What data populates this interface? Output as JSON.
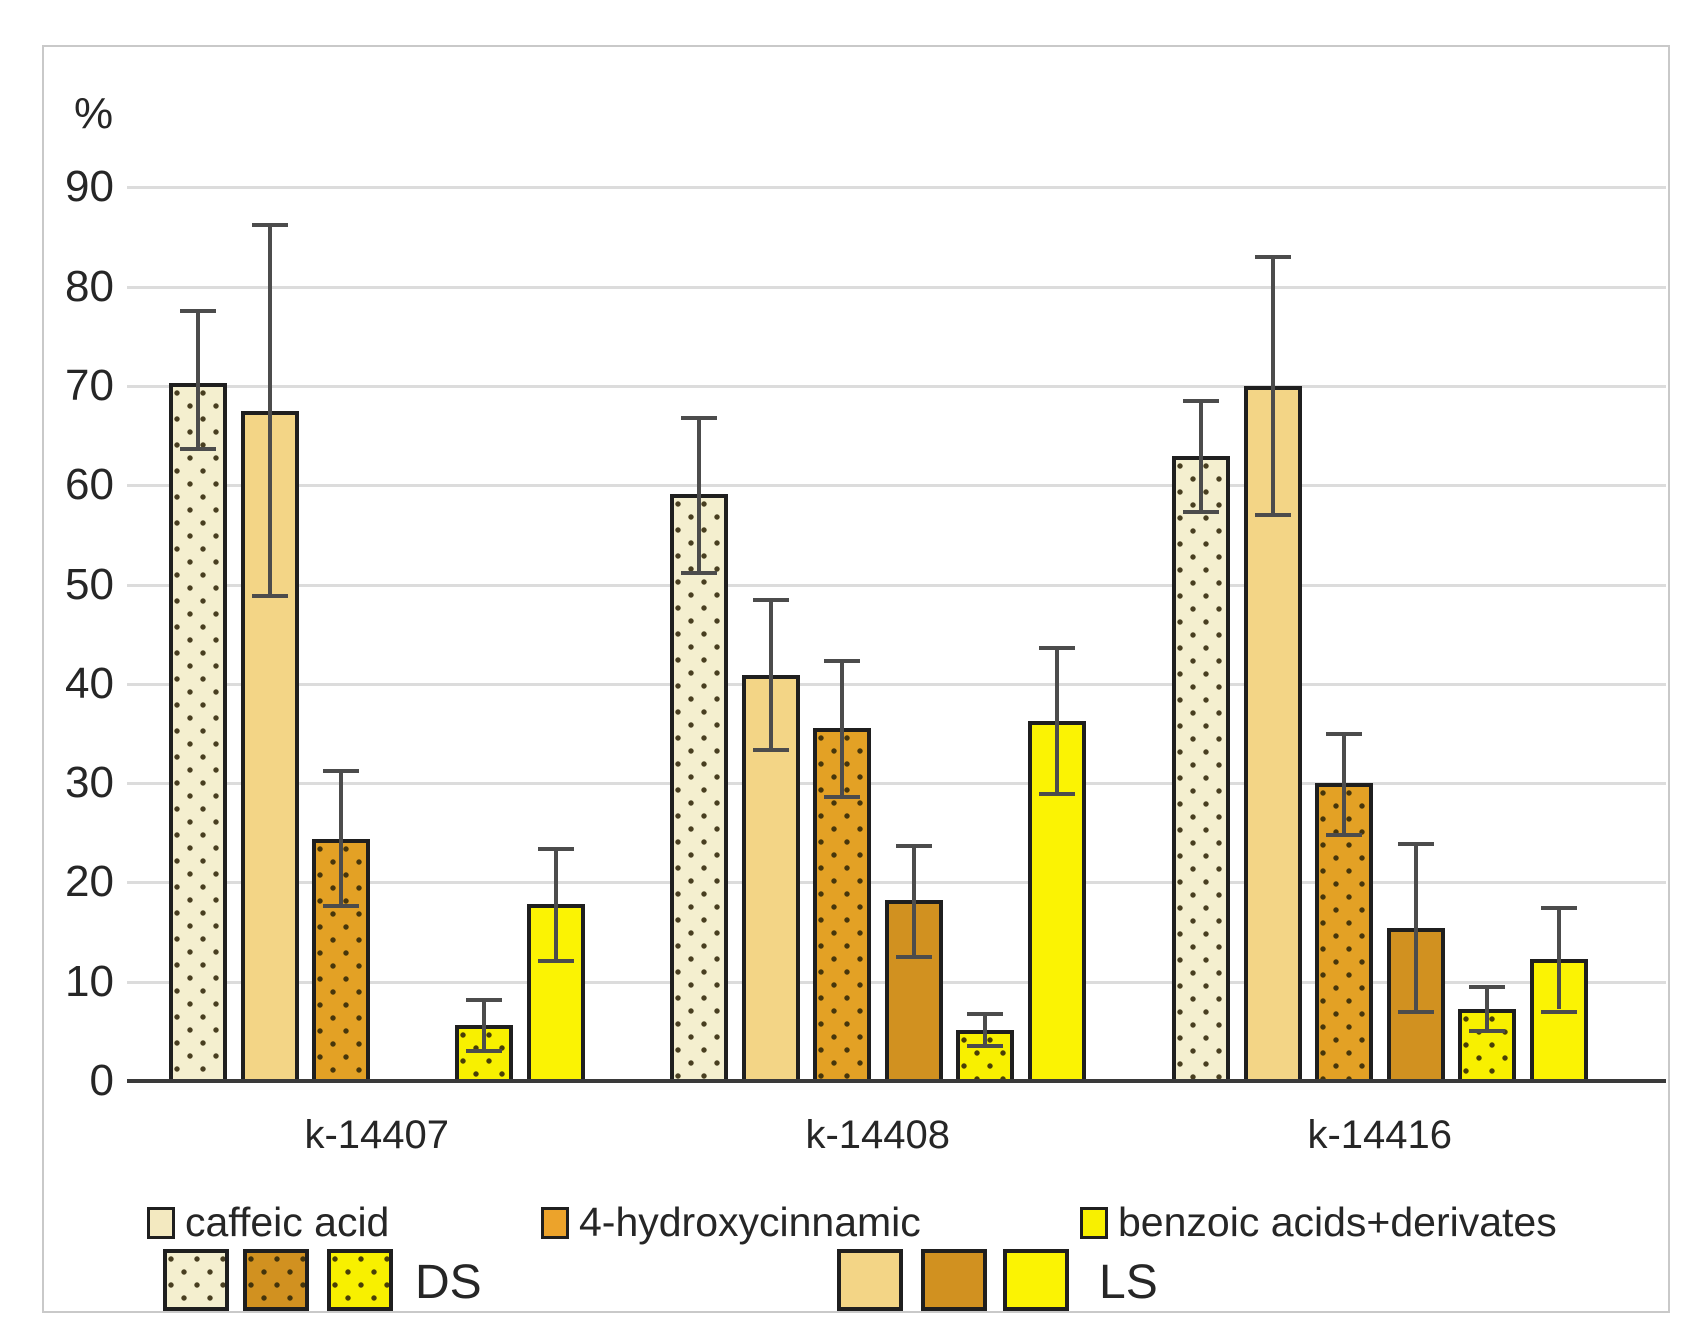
{
  "chart_data": {
    "type": "bar",
    "title": "",
    "ylabel": "%",
    "xlabel": "",
    "ylim": [
      0,
      90
    ],
    "ytick_step": 10,
    "grid": "horizontal",
    "legend_position": "bottom",
    "categories": [
      "k-14407",
      "k-14408",
      "k-14416"
    ],
    "series": [
      {
        "name": "caffeic acid DS",
        "style": "cream-ds",
        "values": [
          70.3,
          59.1,
          62.9
        ],
        "err_low": [
          63.8,
          51.4,
          57.5
        ],
        "err_high": [
          77.5,
          66.8,
          68.5
        ]
      },
      {
        "name": "caffeic acid LS",
        "style": "cream-ls",
        "values": [
          67.5,
          40.9,
          70.0
        ],
        "err_low": [
          49.0,
          33.5,
          57.2
        ],
        "err_high": [
          86.2,
          48.4,
          83.0
        ]
      },
      {
        "name": "4-hydroxycinnamic DS",
        "style": "orange-ds",
        "values": [
          24.4,
          35.5,
          30.0
        ],
        "err_low": [
          17.8,
          28.8,
          25.0
        ],
        "err_high": [
          31.2,
          42.3,
          34.9
        ]
      },
      {
        "name": "4-hydroxycinnamic LS",
        "style": "orange-ls",
        "values": [
          0,
          18.2,
          15.4
        ],
        "err_low": [
          null,
          12.7,
          7.2
        ],
        "err_high": [
          null,
          23.7,
          23.9
        ]
      },
      {
        "name": "benzoic acids+derivates DS",
        "style": "yellow-ds",
        "values": [
          5.6,
          5.1,
          7.3
        ],
        "err_low": [
          3.2,
          3.7,
          5.2
        ],
        "err_high": [
          8.2,
          6.7,
          9.5
        ]
      },
      {
        "name": "benzoic acids+derivates LS",
        "style": "yellow-ls",
        "values": [
          17.8,
          36.3,
          12.3
        ],
        "err_low": [
          12.3,
          29.1,
          7.2
        ],
        "err_high": [
          23.4,
          43.6,
          17.4
        ]
      }
    ]
  },
  "axis": {
    "unit_label": "%",
    "yticks": [
      "0",
      "10",
      "20",
      "30",
      "40",
      "50",
      "60",
      "70",
      "80",
      "90"
    ]
  },
  "legend": {
    "compounds": [
      {
        "label": "caffeic acid",
        "color": "#f3e9c0"
      },
      {
        "label": "4-hydroxycinnamic",
        "color": "#eca32b"
      },
      {
        "label": "benzoic acids+derivates",
        "color": "#f8f000"
      }
    ],
    "treatments": [
      {
        "label": "DS",
        "pattern": "dotted"
      },
      {
        "label": "LS",
        "pattern": "solid"
      }
    ]
  },
  "colors": {
    "cream_dotted": "#f4efcf",
    "cream_solid": "#f3d586",
    "orange_dotted": "#e3a125",
    "orange_solid": "#d19120",
    "yellow_dotted": "#f8f000",
    "yellow_solid": "#fbf303",
    "gridline": "#dcdcdc",
    "axis_line": "#3a3a3a",
    "error_bar": "#4c4c4c",
    "bar_border": "#1f1f1f"
  }
}
